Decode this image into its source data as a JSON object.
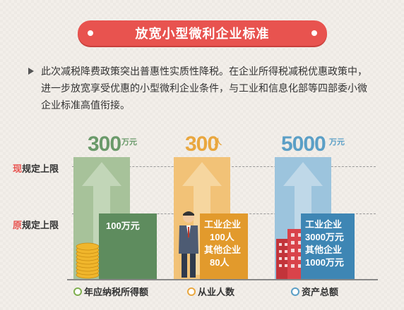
{
  "banner": {
    "title": "放宽小型微利企业标准"
  },
  "intro": {
    "text": "此次减税降费政策突出普惠性实质性降税。在企业所得税减税优惠政策中，进一步放宽享受优惠的小型微利企业条件，与工业和信息化部等四部委小微企业标准高值衔接。"
  },
  "rows": {
    "new_mark": "现",
    "new_label": "规定上限",
    "old_mark": "原",
    "old_label": "规定上限"
  },
  "columns": [
    {
      "value": "300",
      "unit": "万元",
      "color": "#6a9a6a",
      "old_lines": [
        "100万元"
      ],
      "footer": "年应纳税所得额",
      "footer_color": "#7fae4f"
    },
    {
      "value": "300",
      "unit": "人",
      "color": "#e9a73f",
      "old_lines": [
        "工业企业",
        "100人",
        "其他企业",
        "80人"
      ],
      "footer": "从业人数",
      "footer_color": "#e9a73f"
    },
    {
      "value": "5000",
      "unit": "万元",
      "color": "#5b9fc6",
      "old_lines": [
        "工业企业",
        "3000万元",
        "其他企业",
        "1000万元"
      ],
      "footer": "资产总额",
      "footer_color": "#5b9fc6"
    }
  ],
  "colors": {
    "banner": "#e8534f",
    "green": "#6a9a6a",
    "orange": "#e9a73f",
    "blue": "#5b9fc6"
  }
}
